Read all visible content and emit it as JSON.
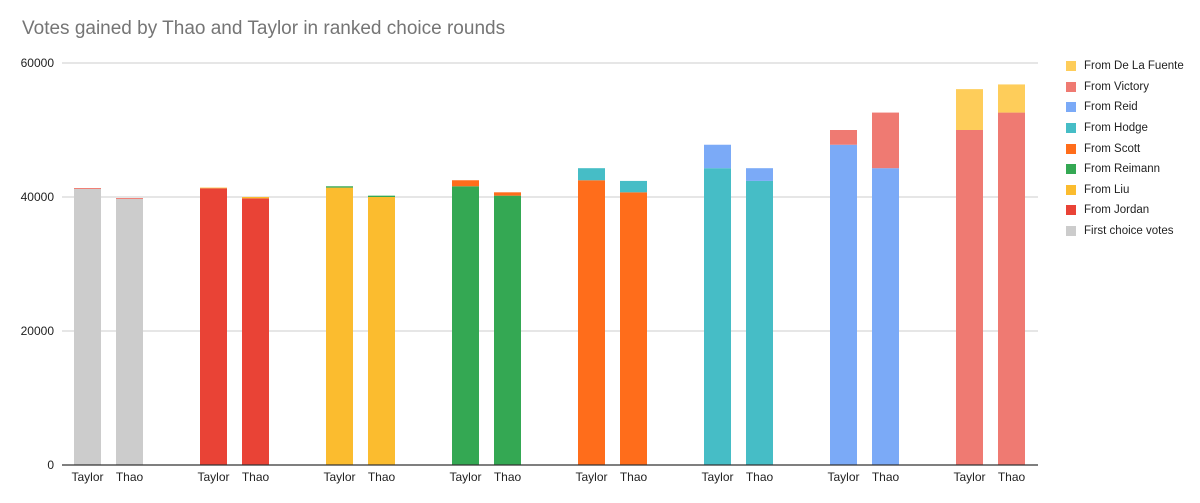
{
  "chart_data": {
    "type": "bar",
    "stacked": true,
    "title": "Votes gained by Thao and Taylor in ranked choice rounds",
    "xlabel": "",
    "ylabel": "",
    "ylim": [
      0,
      60000
    ],
    "yticks": [
      0,
      20000,
      40000,
      60000
    ],
    "grid": true,
    "legend_position": "right",
    "categories": [
      "Taylor",
      "Thao",
      "Taylor",
      "Thao",
      "Taylor",
      "Thao",
      "Taylor",
      "Thao",
      "Taylor",
      "Thao",
      "Taylor",
      "Thao",
      "Taylor",
      "Thao",
      "Taylor",
      "Thao"
    ],
    "series": [
      {
        "name": "First choice votes",
        "color": "#cccccc",
        "values": [
          41200,
          39700,
          0,
          0,
          0,
          0,
          0,
          0,
          0,
          0,
          0,
          0,
          0,
          0,
          0,
          0
        ]
      },
      {
        "name": "From Jordan",
        "color": "#e94336",
        "values": [
          100,
          100,
          41300,
          39800,
          0,
          0,
          0,
          0,
          0,
          0,
          0,
          0,
          0,
          0,
          0,
          0
        ]
      },
      {
        "name": "From Liu",
        "color": "#fbbc2f",
        "values": [
          0,
          0,
          100,
          200,
          41400,
          40000,
          0,
          0,
          0,
          0,
          0,
          0,
          0,
          0,
          0,
          0
        ]
      },
      {
        "name": "From Reimann",
        "color": "#34a853",
        "values": [
          0,
          0,
          0,
          0,
          200,
          200,
          41600,
          40200,
          0,
          0,
          0,
          0,
          0,
          0,
          0,
          0
        ]
      },
      {
        "name": "From Scott",
        "color": "#ff6d1b",
        "values": [
          0,
          0,
          0,
          0,
          0,
          0,
          900,
          500,
          42500,
          40700,
          0,
          0,
          0,
          0,
          0,
          0
        ]
      },
      {
        "name": "From Hodge",
        "color": "#46bdc6",
        "values": [
          0,
          0,
          0,
          0,
          0,
          0,
          0,
          0,
          1800,
          1700,
          44300,
          42400,
          0,
          0,
          0,
          0
        ]
      },
      {
        "name": "From Reid",
        "color": "#7baaf7",
        "values": [
          0,
          0,
          0,
          0,
          0,
          0,
          0,
          0,
          0,
          0,
          3500,
          1900,
          47800,
          44300,
          0,
          0
        ]
      },
      {
        "name": "From Victory",
        "color": "#ef7a72",
        "values": [
          0,
          0,
          0,
          0,
          0,
          0,
          0,
          0,
          0,
          0,
          0,
          0,
          2200,
          8300,
          50000,
          52600
        ]
      },
      {
        "name": "From De La Fuente",
        "color": "#fecd5a",
        "values": [
          0,
          0,
          0,
          0,
          0,
          0,
          0,
          0,
          0,
          0,
          0,
          0,
          0,
          0,
          6100,
          4200
        ]
      }
    ],
    "legend": [
      "From De La Fuente",
      "From Victory",
      "From Reid",
      "From Hodge",
      "From Scott",
      "From Reimann",
      "From Liu",
      "From Jordan",
      "First choice votes"
    ]
  }
}
